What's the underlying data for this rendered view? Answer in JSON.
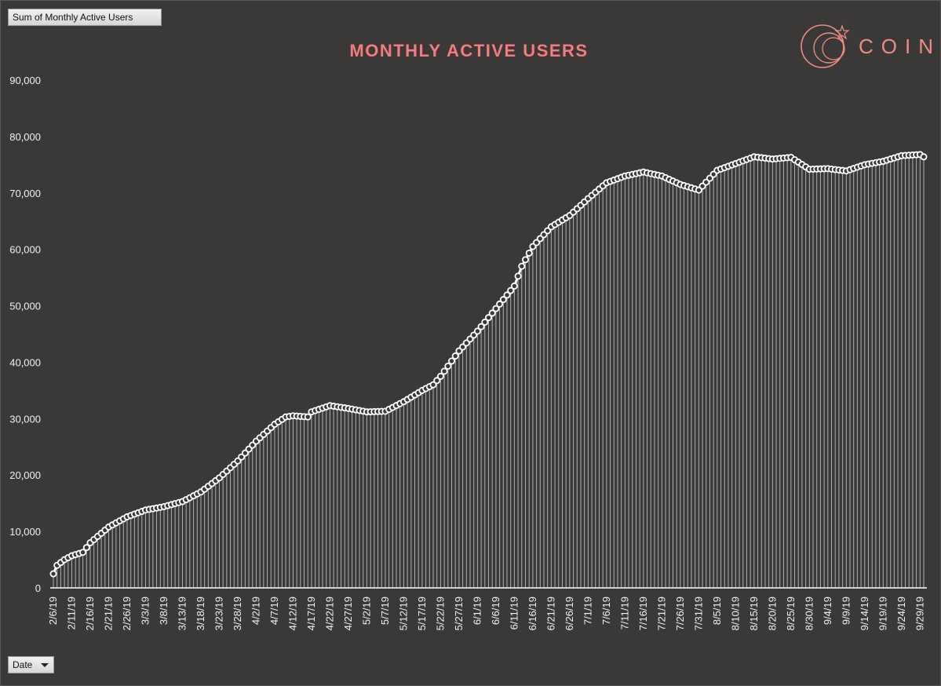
{
  "filters": {
    "value_field_label": "Sum of Monthly  Active Users",
    "axis_field_label": "Date"
  },
  "brand": {
    "name": "COIN",
    "color": "#f08b83"
  },
  "colors": {
    "background": "#3a3937",
    "title": "#f47c7c",
    "line": "#ffffff",
    "marker_fill": "#3a3937"
  },
  "chart_data": {
    "type": "line",
    "title": "MONTHLY ACTIVE USERS",
    "xlabel": "",
    "ylabel": "",
    "ylim": [
      0,
      90000
    ],
    "yticks": [
      0,
      10000,
      20000,
      30000,
      40000,
      50000,
      60000,
      70000,
      80000,
      90000
    ],
    "ytick_labels": [
      "0",
      "10,000",
      "20,000",
      "30,000",
      "40,000",
      "50,000",
      "60,000",
      "70,000",
      "80,000",
      "90,000"
    ],
    "x_start": "2019-02-06",
    "x_end": "2019-09-30",
    "xtick_labels": [
      "2/6/19",
      "2/11/19",
      "2/16/19",
      "2/21/19",
      "2/26/19",
      "3/3/19",
      "3/8/19",
      "3/13/19",
      "3/18/19",
      "3/23/19",
      "3/28/19",
      "4/2/19",
      "4/7/19",
      "4/12/19",
      "4/17/19",
      "4/22/19",
      "4/27/19",
      "5/2/19",
      "5/7/19",
      "5/12/19",
      "5/17/19",
      "5/22/19",
      "5/27/19",
      "6/1/19",
      "6/6/19",
      "6/11/19",
      "6/16/19",
      "6/21/19",
      "6/26/19",
      "7/1/19",
      "7/6/19",
      "7/11/19",
      "7/16/19",
      "7/21/19",
      "7/26/19",
      "7/31/19",
      "8/5/19",
      "8/10/19",
      "8/15/19",
      "8/20/19",
      "8/25/19",
      "8/30/19",
      "9/4/19",
      "9/9/19",
      "9/14/19",
      "9/19/19",
      "9/24/19",
      "9/29/19"
    ],
    "grid": false,
    "drop_lines": true,
    "series": [
      {
        "points": [
          [
            "2019-02-06",
            2500
          ],
          [
            "2019-02-07",
            4000
          ],
          [
            "2019-02-09",
            5000
          ],
          [
            "2019-02-11",
            5700
          ],
          [
            "2019-02-14",
            6300
          ],
          [
            "2019-02-16",
            8000
          ],
          [
            "2019-02-21",
            10800
          ],
          [
            "2019-02-26",
            12600
          ],
          [
            "2019-03-03",
            13800
          ],
          [
            "2019-03-08",
            14400
          ],
          [
            "2019-03-13",
            15300
          ],
          [
            "2019-03-18",
            17000
          ],
          [
            "2019-03-23",
            19500
          ],
          [
            "2019-03-28",
            22500
          ],
          [
            "2019-04-02",
            26000
          ],
          [
            "2019-04-07",
            29000
          ],
          [
            "2019-04-10",
            30300
          ],
          [
            "2019-04-12",
            30500
          ],
          [
            "2019-04-16",
            30300
          ],
          [
            "2019-04-17",
            31200
          ],
          [
            "2019-04-22",
            32300
          ],
          [
            "2019-04-27",
            31800
          ],
          [
            "2019-05-02",
            31200
          ],
          [
            "2019-05-07",
            31300
          ],
          [
            "2019-05-12",
            33000
          ],
          [
            "2019-05-17",
            35000
          ],
          [
            "2019-05-20",
            36000
          ],
          [
            "2019-05-22",
            37500
          ],
          [
            "2019-05-27",
            42000
          ],
          [
            "2019-06-01",
            45500
          ],
          [
            "2019-06-06",
            49500
          ],
          [
            "2019-06-11",
            53500
          ],
          [
            "2019-06-13",
            57000
          ],
          [
            "2019-06-16",
            60500
          ],
          [
            "2019-06-21",
            64000
          ],
          [
            "2019-06-26",
            66000
          ],
          [
            "2019-07-01",
            69000
          ],
          [
            "2019-07-06",
            71800
          ],
          [
            "2019-07-11",
            73000
          ],
          [
            "2019-07-16",
            73700
          ],
          [
            "2019-07-21",
            73000
          ],
          [
            "2019-07-26",
            71500
          ],
          [
            "2019-07-31",
            70500
          ],
          [
            "2019-08-05",
            74000
          ],
          [
            "2019-08-10",
            75200
          ],
          [
            "2019-08-15",
            76400
          ],
          [
            "2019-08-20",
            76000
          ],
          [
            "2019-08-25",
            76300
          ],
          [
            "2019-08-30",
            74200
          ],
          [
            "2019-09-04",
            74300
          ],
          [
            "2019-09-09",
            73900
          ],
          [
            "2019-09-14",
            75000
          ],
          [
            "2019-09-19",
            75600
          ],
          [
            "2019-09-24",
            76600
          ],
          [
            "2019-09-29",
            76800
          ],
          [
            "2019-09-30",
            76400
          ]
        ]
      }
    ]
  }
}
